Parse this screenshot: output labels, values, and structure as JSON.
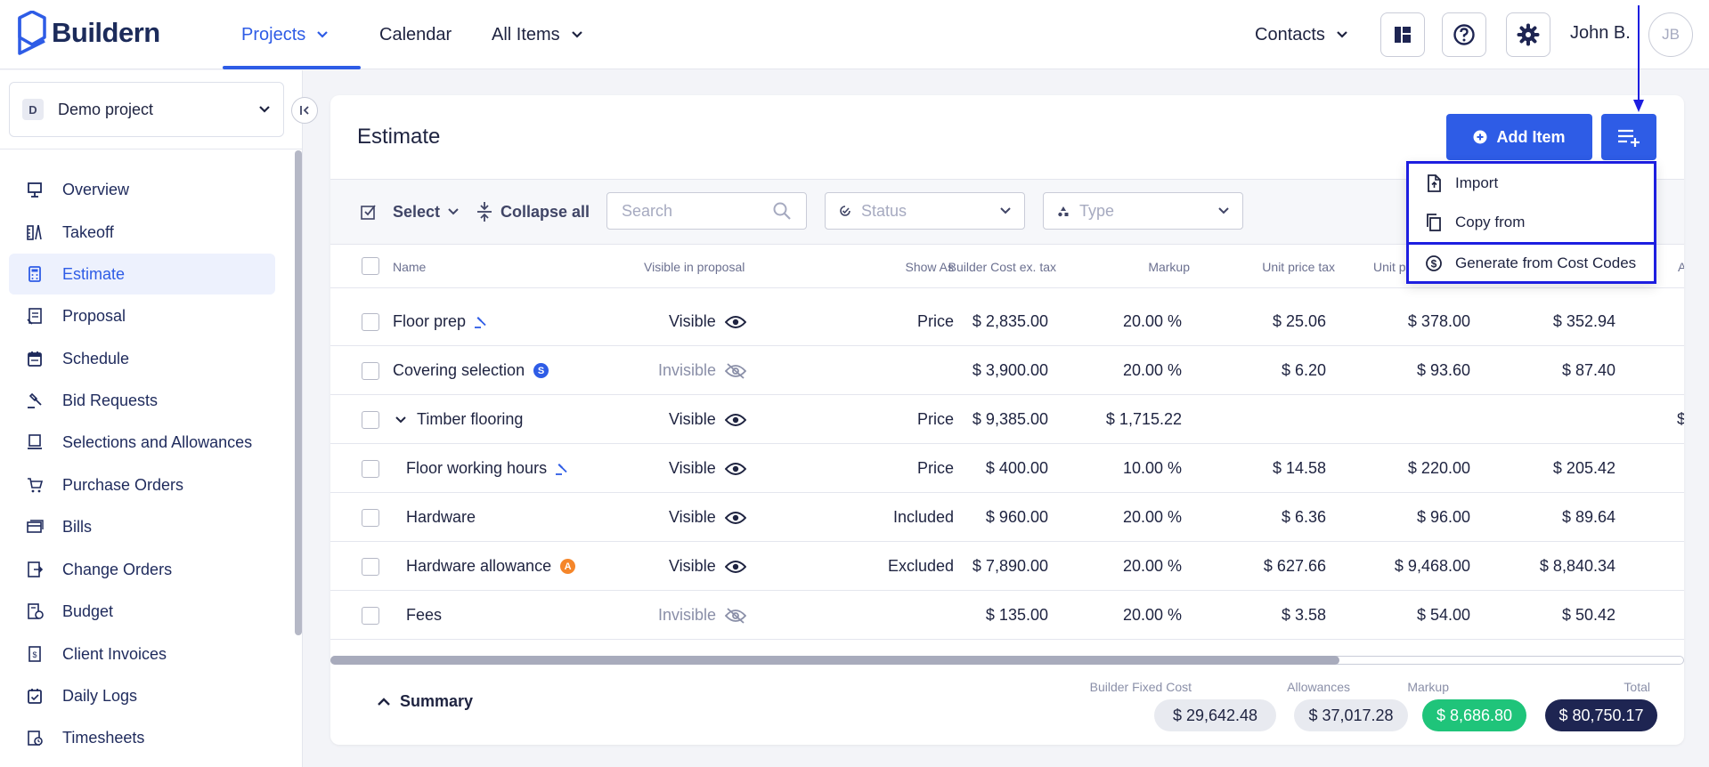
{
  "header": {
    "brand": "Buildern",
    "nav": [
      {
        "label": "Projects",
        "has_dropdown": true,
        "active": true
      },
      {
        "label": "Calendar",
        "has_dropdown": false
      },
      {
        "label": "All Items",
        "has_dropdown": true
      }
    ],
    "contacts_label": "Contacts",
    "icon_buttons": [
      "dashboard-icon",
      "help-icon",
      "gear-icon"
    ],
    "user_name": "John B.",
    "user_initials": "JB"
  },
  "sidebar": {
    "project": {
      "badge": "D",
      "name": "Demo project"
    },
    "items": [
      {
        "label": "Overview",
        "icon": "overview-icon"
      },
      {
        "label": "Takeoff",
        "icon": "takeoff-icon"
      },
      {
        "label": "Estimate",
        "icon": "calculator-icon",
        "active": true
      },
      {
        "label": "Proposal",
        "icon": "proposal-icon"
      },
      {
        "label": "Schedule",
        "icon": "calendar-icon"
      },
      {
        "label": "Bid Requests",
        "icon": "gavel-icon"
      },
      {
        "label": "Selections and Allowances",
        "icon": "selections-icon"
      },
      {
        "label": "Purchase Orders",
        "icon": "cart-icon"
      },
      {
        "label": "Bills",
        "icon": "bills-icon"
      },
      {
        "label": "Change Orders",
        "icon": "change-orders-icon"
      },
      {
        "label": "Budget",
        "icon": "budget-icon"
      },
      {
        "label": "Client Invoices",
        "icon": "invoice-icon"
      },
      {
        "label": "Daily Logs",
        "icon": "daily-log-icon"
      },
      {
        "label": "Timesheets",
        "icon": "timesheet-icon"
      }
    ]
  },
  "estimate": {
    "title": "Estimate",
    "add_item_label": "Add Item",
    "toolbar": {
      "select_label": "Select",
      "collapse_label": "Collapse all",
      "search_placeholder": "Search",
      "status_placeholder": "Status",
      "type_placeholder": "Type"
    },
    "columns": [
      "Name",
      "Visible in proposal",
      "Show As",
      "Builder Cost ex. tax",
      "Markup",
      "Unit price tax",
      "Unit p",
      "A"
    ],
    "rows": [
      {
        "name": "Floor prep",
        "badge": "bid",
        "visibility": "Visible",
        "show_as": "Price",
        "builder_cost": "$ 2,835.00",
        "markup": "20.00 %",
        "unit_price_tax": "$ 25.06",
        "unit_price": "$ 378.00",
        "extra": "$ 352.94"
      },
      {
        "name": "Covering selection",
        "badge": "S",
        "visibility": "Invisible",
        "show_as": "",
        "builder_cost": "$ 3,900.00",
        "markup": "20.00 %",
        "unit_price_tax": "$ 6.20",
        "unit_price": "$ 93.60",
        "extra": "$ 87.40"
      },
      {
        "name": "Timber flooring",
        "badge": "",
        "group": true,
        "visibility": "Visible",
        "show_as": "Price",
        "builder_cost": "$ 9,385.00",
        "markup": "$ 1,715.22",
        "unit_price_tax": "",
        "unit_price": "",
        "extra": "",
        "overflow": "$"
      },
      {
        "name": "Floor working hours",
        "badge": "bid",
        "child": true,
        "visibility": "Visible",
        "show_as": "Price",
        "builder_cost": "$ 400.00",
        "markup": "10.00 %",
        "unit_price_tax": "$ 14.58",
        "unit_price": "$ 220.00",
        "extra": "$ 205.42"
      },
      {
        "name": "Hardware",
        "badge": "",
        "child": true,
        "visibility": "Visible",
        "show_as": "Included",
        "builder_cost": "$ 960.00",
        "markup": "20.00 %",
        "unit_price_tax": "$ 6.36",
        "unit_price": "$ 96.00",
        "extra": "$ 89.64"
      },
      {
        "name": "Hardware allowance",
        "badge": "A",
        "child": true,
        "visibility": "Visible",
        "show_as": "Excluded",
        "builder_cost": "$ 7,890.00",
        "markup": "20.00 %",
        "unit_price_tax": "$ 627.66",
        "unit_price": "$ 9,468.00",
        "extra": "$ 8,840.34"
      },
      {
        "name": "Fees",
        "badge": "",
        "child": true,
        "visibility": "Invisible",
        "show_as": "",
        "builder_cost": "$ 135.00",
        "markup": "20.00 %",
        "unit_price_tax": "$ 3.58",
        "unit_price": "$ 54.00",
        "extra": "$ 50.42"
      }
    ],
    "summary": {
      "toggle_label": "Summary",
      "items": [
        {
          "label": "Builder Fixed Cost",
          "value": "$ 29,642.48",
          "color": "#e8eaf0",
          "text_color": "#1e2340"
        },
        {
          "label": "Allowances",
          "value": "$ 37,017.28",
          "color": "#e8eaf0",
          "text_color": "#1e2340"
        },
        {
          "label": "Markup",
          "value": "$ 8,686.80",
          "color": "#1fc47a",
          "text_color": "#ffffff"
        },
        {
          "label": "Total",
          "value": "$ 80,750.17",
          "color": "#1e2552",
          "text_color": "#ffffff"
        }
      ]
    }
  },
  "dropdown": {
    "items": [
      {
        "label": "Import",
        "icon": "file-upload-icon"
      },
      {
        "label": "Copy from",
        "icon": "copy-icon"
      },
      {
        "label": "Generate from Cost Codes",
        "icon": "dollar-circle-icon"
      }
    ]
  },
  "colors": {
    "accent": "#2e5ce6",
    "annotation": "#1d1ee0"
  }
}
